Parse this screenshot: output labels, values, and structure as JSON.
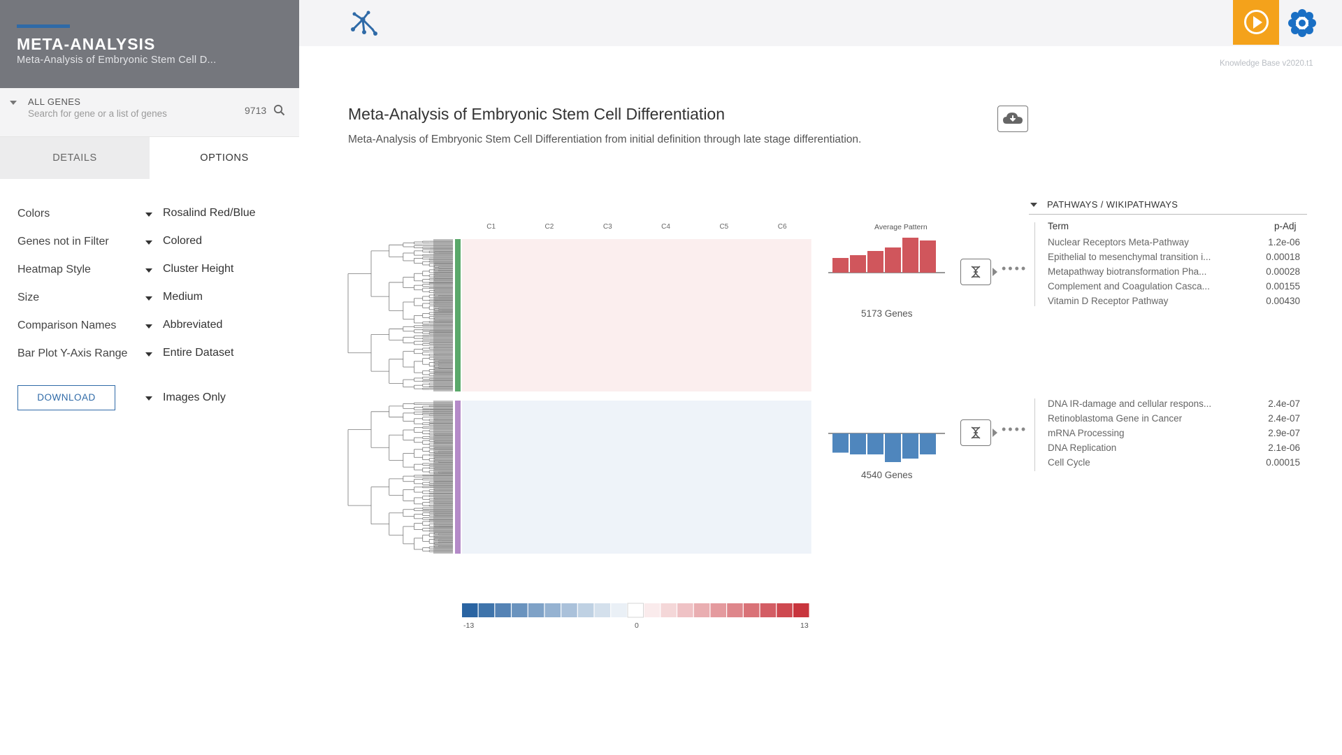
{
  "app": {
    "title": "META-ANALYSIS",
    "subtitle": "Meta-Analysis of Embryonic Stem Cell D...",
    "kb_version": "Knowledge Base v2020.t1"
  },
  "search": {
    "label": "ALL GENES",
    "placeholder": "Search for gene or a list of genes",
    "count": "9713"
  },
  "tabs": [
    {
      "label": "DETAILS",
      "active": false
    },
    {
      "label": "OPTIONS",
      "active": true
    }
  ],
  "options": [
    {
      "label": "Colors",
      "value": "Rosalind Red/Blue"
    },
    {
      "label": "Genes not in Filter",
      "value": "Colored"
    },
    {
      "label": "Heatmap Style",
      "value": "Cluster Height"
    },
    {
      "label": "Size",
      "value": "Medium"
    },
    {
      "label": "Comparison Names",
      "value": "Abbreviated"
    },
    {
      "label": "Bar Plot Y-Axis Range",
      "value": "Entire Dataset"
    }
  ],
  "download": {
    "button_label": "DOWNLOAD",
    "value": "Images Only"
  },
  "main": {
    "title": "Meta-Analysis of Embryonic Stem Cell Differentiation",
    "description": "Meta-Analysis of Embryonic Stem Cell Differentiation from initial definition through late stage differentiation."
  },
  "heatmap": {
    "columns": [
      "C1",
      "C2",
      "C3",
      "C4",
      "C5",
      "C6"
    ],
    "avg_pattern_label": "Average Pattern",
    "legend_min": "-13",
    "legend_mid": "0",
    "legend_max": "13",
    "clusters": [
      {
        "id": "up",
        "genes_label": "5173 Genes",
        "bar_color": "#d0565c",
        "cluster_color": "#5aa86a",
        "avg_pattern": [
          0.42,
          0.5,
          0.62,
          0.72,
          1.0,
          0.92
        ]
      },
      {
        "id": "down",
        "genes_label": "4540 Genes",
        "bar_color": "#4f86bd",
        "cluster_color": "#b48ac8",
        "avg_pattern": [
          -0.55,
          -0.6,
          -0.6,
          -0.82,
          -0.72,
          -0.6
        ]
      }
    ]
  },
  "pathways": {
    "header": "PATHWAYS / WIKIPATHWAYS",
    "col_term": "Term",
    "col_padj": "p-Adj",
    "groups": [
      {
        "rows": [
          {
            "term": "Nuclear Receptors Meta-Pathway",
            "padj": "1.2e-06"
          },
          {
            "term": "Epithelial to mesenchymal transition i...",
            "padj": "0.00018"
          },
          {
            "term": "Metapathway biotransformation Pha...",
            "padj": "0.00028"
          },
          {
            "term": "Complement and Coagulation Casca...",
            "padj": "0.00155"
          },
          {
            "term": "Vitamin D Receptor Pathway",
            "padj": "0.00430"
          }
        ]
      },
      {
        "rows": [
          {
            "term": "DNA IR-damage and cellular respons...",
            "padj": "2.4e-07"
          },
          {
            "term": "Retinoblastoma Gene in Cancer",
            "padj": "2.4e-07"
          },
          {
            "term": "mRNA Processing",
            "padj": "2.9e-07"
          },
          {
            "term": "DNA Replication",
            "padj": "2.1e-06"
          },
          {
            "term": "Cell Cycle",
            "padj": "0.00015"
          }
        ]
      }
    ]
  },
  "colors": {
    "sidebar_header": "#75777d",
    "accent_blue": "#2f6aa7",
    "play_orange": "#f4a21b",
    "heat_red": "#c8353d",
    "heat_blue": "#2a64a2"
  },
  "icons": {
    "logo": "network-logo-icon",
    "play": "play-circle-icon",
    "brand": "flower-brand-icon",
    "search": "search-icon",
    "cloud": "cloud-download-icon",
    "dna": "dna-icon"
  }
}
